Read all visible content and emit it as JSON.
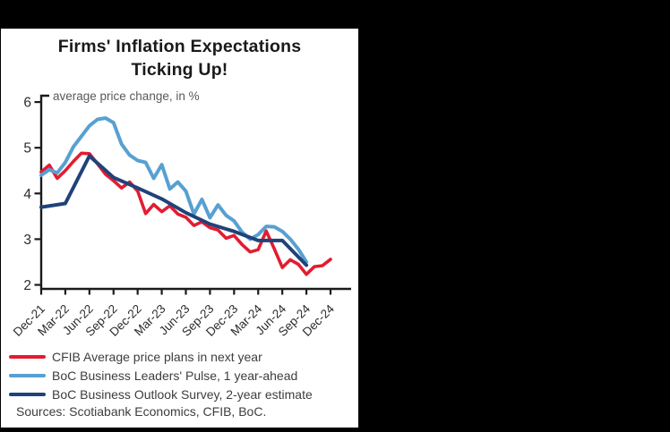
{
  "header": {
    "title_line1": "Firms' Inflation Expectations",
    "title_line2": "Ticking Up!"
  },
  "chart_data": {
    "type": "line",
    "title": "Firms' Inflation Expectations Ticking Up!",
    "axis_note": "average price change, in %",
    "ylabel": "average price change, in %",
    "ylim": [
      2,
      6
    ],
    "yticks": [
      2,
      3,
      4,
      5,
      6
    ],
    "x_unit": "month",
    "x_start": "Dec-21",
    "x_end": "Dec-24",
    "x_tick_labels": [
      "Dec-21",
      "Mar-22",
      "Jun-22",
      "Sep-22",
      "Dec-22",
      "Mar-23",
      "Jun-23",
      "Sep-23",
      "Dec-23",
      "Mar-24",
      "Jun-24",
      "Sep-24",
      "Dec-24"
    ],
    "grid": false,
    "legend_position": "bottom-left",
    "axis_color": "#1a1a1a",
    "series": [
      {
        "name": "CFIB Average price plans in next year",
        "color": "#e31c31",
        "month_step": 1,
        "values": [
          4.47,
          4.62,
          4.33,
          4.5,
          4.7,
          4.88,
          4.87,
          4.65,
          4.42,
          4.28,
          4.12,
          4.25,
          4.05,
          3.56,
          3.76,
          3.6,
          3.73,
          3.55,
          3.48,
          3.3,
          3.38,
          3.25,
          3.2,
          3.02,
          3.08,
          2.88,
          2.72,
          2.77,
          3.18,
          2.79,
          2.38,
          2.55,
          2.45,
          2.23,
          2.4,
          2.42,
          2.56
        ]
      },
      {
        "name": "BoC Business Leaders' Pulse, 1 year-ahead",
        "color": "#57a0d2",
        "month_step": 1,
        "values": [
          4.4,
          4.52,
          4.45,
          4.68,
          5.02,
          5.25,
          5.48,
          5.62,
          5.65,
          5.55,
          5.08,
          4.84,
          4.72,
          4.68,
          4.33,
          4.63,
          4.1,
          4.25,
          4.05,
          3.55,
          3.87,
          3.47,
          3.75,
          3.52,
          3.4,
          3.15,
          3.0,
          3.1,
          3.28,
          3.27,
          3.17,
          3.0,
          2.78,
          2.5
        ]
      },
      {
        "name": "BoC Business Outlook Survey, 2-year estimate",
        "color": "#1f4379",
        "month_step": 3,
        "values": [
          3.7,
          3.78,
          4.82,
          4.35,
          4.12,
          3.88,
          3.58,
          3.33,
          3.17,
          2.97,
          2.97,
          2.43
        ]
      }
    ],
    "sources": "Sources: Scotiabank Economics, CFIB, BoC."
  }
}
